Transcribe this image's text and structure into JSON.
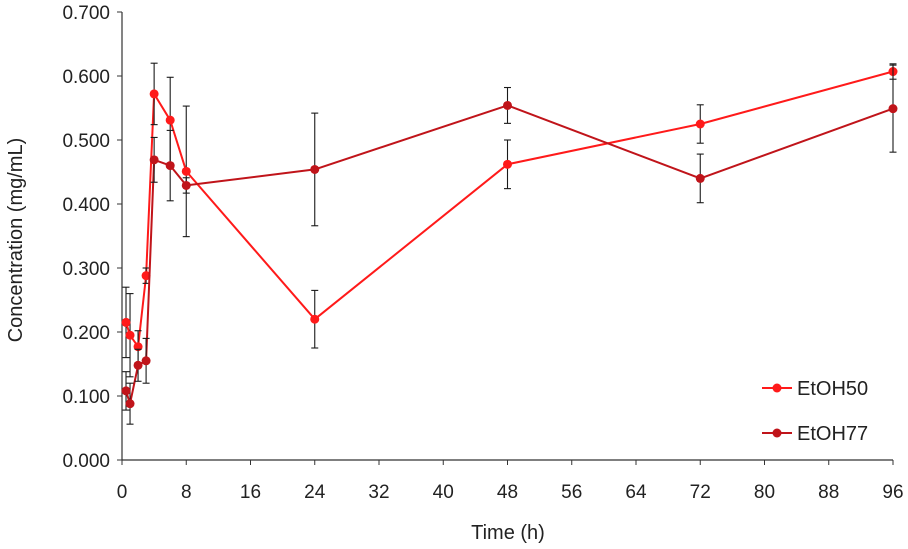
{
  "chart_data": {
    "type": "line",
    "title": "",
    "xlabel": "Time (h)",
    "ylabel": "Concentration (mg/mL)",
    "xlim": [
      0,
      96
    ],
    "ylim": [
      0,
      0.7
    ],
    "xticks": [
      0,
      8,
      16,
      24,
      32,
      40,
      48,
      56,
      64,
      72,
      80,
      88,
      96
    ],
    "xtick_labels": [
      "0",
      "8",
      "16",
      "24",
      "32",
      "40",
      "48",
      "56",
      "64",
      "72",
      "80",
      "88",
      "96"
    ],
    "yticks": [
      0,
      0.1,
      0.2,
      0.3,
      0.4,
      0.5,
      0.6,
      0.7
    ],
    "ytick_labels": [
      "0.000",
      "0.100",
      "0.200",
      "0.300",
      "0.400",
      "0.500",
      "0.600",
      "0.700"
    ],
    "grid": false,
    "legend_position": "bottom-right",
    "series": [
      {
        "name": "EtOH50",
        "color": "#ff1a1a",
        "x": [
          0.5,
          1,
          2,
          3,
          4,
          6,
          8,
          24,
          48,
          72,
          96
        ],
        "y": [
          0.215,
          0.195,
          0.177,
          0.288,
          0.572,
          0.531,
          0.451,
          0.22,
          0.462,
          0.525,
          0.607
        ],
        "err": [
          0.055,
          0.065,
          0.025,
          0.012,
          0.048,
          0.067,
          0.102,
          0.045,
          0.038,
          0.03,
          0.012
        ]
      },
      {
        "name": "EtOH77",
        "color": "#c0141a",
        "x": [
          0.5,
          1,
          2,
          3,
          4,
          6,
          8,
          24,
          48,
          72,
          96
        ],
        "y": [
          0.108,
          0.088,
          0.148,
          0.155,
          0.469,
          0.46,
          0.429,
          0.454,
          0.554,
          0.44,
          0.549
        ],
        "err": [
          0.03,
          0.032,
          0.025,
          0.035,
          0.035,
          0.055,
          0.012,
          0.088,
          0.028,
          0.038,
          0.068
        ]
      }
    ]
  }
}
